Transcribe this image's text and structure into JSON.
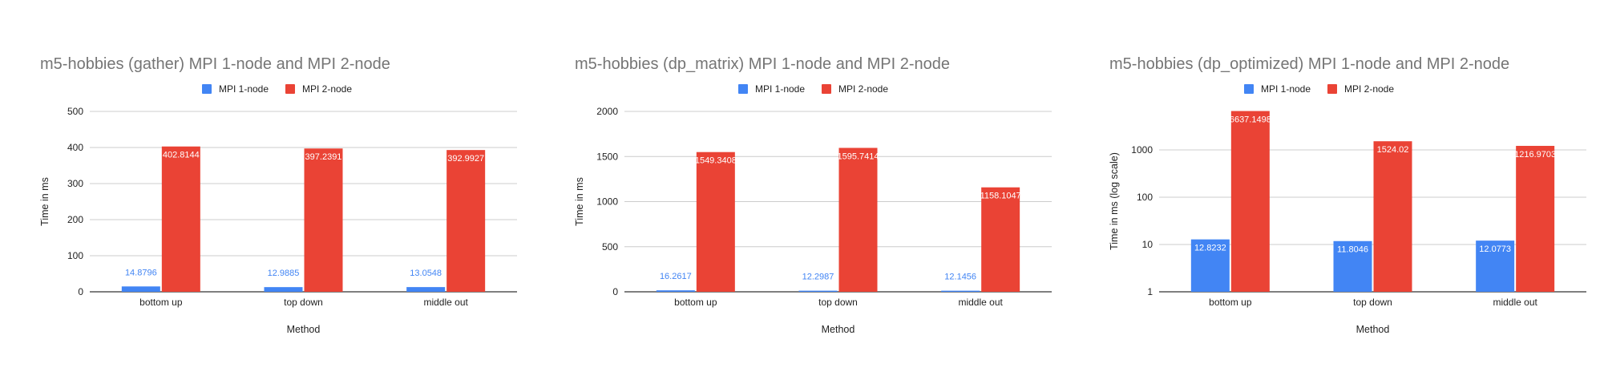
{
  "colors": {
    "series1": "#4285f4",
    "series2": "#ea4335",
    "grid": "#cccccc",
    "axis": "#333333",
    "title": "#757575"
  },
  "chart_data": [
    {
      "type": "bar",
      "title": "m5-hobbies (gather) MPI 1-node and MPI 2-node",
      "xlabel": "Method",
      "ylabel": "Time in ms",
      "scale": "linear",
      "ylim": [
        0,
        500
      ],
      "yticks": [
        0,
        100,
        200,
        300,
        400,
        500
      ],
      "ytick_labels": [
        "0",
        "100",
        "200",
        "300",
        "400",
        "500"
      ],
      "grid": true,
      "legend_position": "top",
      "categories": [
        "bottom up",
        "top down",
        "middle out"
      ],
      "series": [
        {
          "name": "MPI 1-node",
          "values": [
            14.8796,
            12.9885,
            13.0548
          ],
          "labels": [
            "14.8796",
            "12.9885",
            "13.0548"
          ]
        },
        {
          "name": "MPI 2-node",
          "values": [
            402.8144,
            397.2391,
            392.9927
          ],
          "labels": [
            "402.8144",
            "397.2391",
            "392.9927"
          ]
        }
      ]
    },
    {
      "type": "bar",
      "title": "m5-hobbies (dp_matrix) MPI 1-node and MPI 2-node",
      "xlabel": "Method",
      "ylabel": "Time in ms",
      "scale": "linear",
      "ylim": [
        0,
        2000
      ],
      "yticks": [
        0,
        500,
        1000,
        1500,
        2000
      ],
      "ytick_labels": [
        "0",
        "500",
        "1000",
        "1500",
        "2000"
      ],
      "grid": true,
      "legend_position": "top",
      "categories": [
        "bottom up",
        "top down",
        "middle out"
      ],
      "series": [
        {
          "name": "MPI 1-node",
          "values": [
            16.2617,
            12.2987,
            12.1456
          ],
          "labels": [
            "16.2617",
            "12.2987",
            "12.1456"
          ]
        },
        {
          "name": "MPI 2-node",
          "values": [
            1549.3408,
            1595.7414,
            1158.1047
          ],
          "labels": [
            "1549.3408",
            "1595.7414",
            "1158.1047"
          ]
        }
      ]
    },
    {
      "type": "bar",
      "title": "m5-hobbies (dp_optimized) MPI 1-node and MPI 2-node",
      "xlabel": "Method",
      "ylabel": "Time in ms (log scale)",
      "scale": "log",
      "ylim": [
        1,
        10000
      ],
      "yticks": [
        1,
        10,
        100,
        1000
      ],
      "ytick_labels": [
        "1",
        "10",
        "100",
        "1000"
      ],
      "grid": true,
      "legend_position": "top",
      "categories": [
        "bottom up",
        "top down",
        "middle out"
      ],
      "series": [
        {
          "name": "MPI 1-node",
          "values": [
            12.8232,
            11.8046,
            12.0773
          ],
          "labels": [
            "12.8232",
            "11.8046",
            "12.0773"
          ]
        },
        {
          "name": "MPI 2-node",
          "values": [
            6637.1498,
            1524.02,
            1216.9703
          ],
          "labels": [
            "6637.1498",
            "1524.02",
            "1216.9703"
          ]
        }
      ]
    }
  ]
}
